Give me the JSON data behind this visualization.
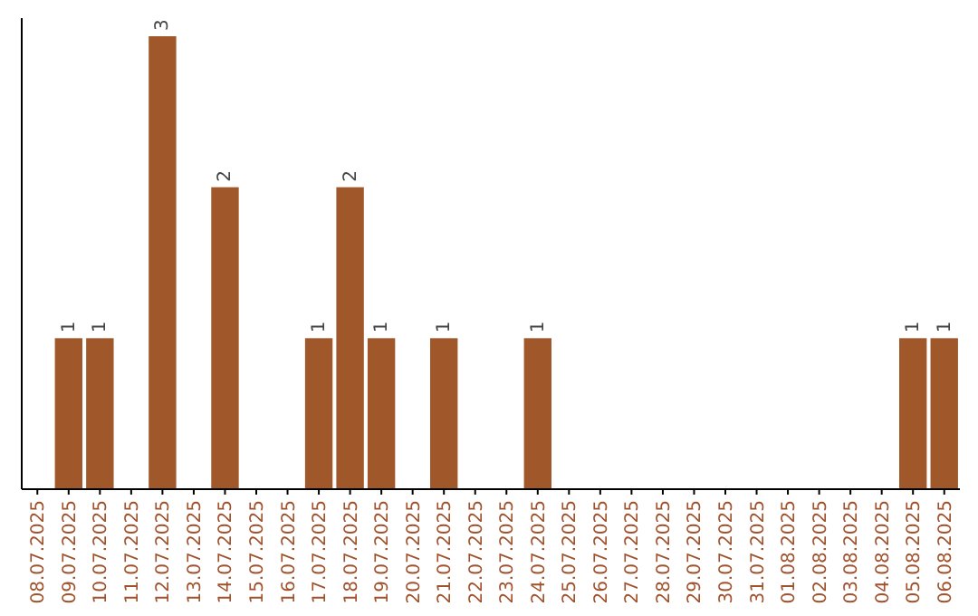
{
  "chart_data": {
    "type": "bar",
    "categories": [
      "08.07.2025",
      "09.07.2025",
      "10.07.2025",
      "11.07.2025",
      "12.07.2025",
      "13.07.2025",
      "14.07.2025",
      "15.07.2025",
      "16.07.2025",
      "17.07.2025",
      "18.07.2025",
      "19.07.2025",
      "20.07.2025",
      "21.07.2025",
      "22.07.2025",
      "23.07.2025",
      "24.07.2025",
      "25.07.2025",
      "26.07.2025",
      "27.07.2025",
      "28.07.2025",
      "29.07.2025",
      "30.07.2025",
      "31.07.2025",
      "01.08.2025",
      "02.08.2025",
      "03.08.2025",
      "04.08.2025",
      "05.08.2025",
      "06.08.2025"
    ],
    "values": [
      0,
      1,
      1,
      0,
      3,
      0,
      2,
      0,
      0,
      1,
      2,
      1,
      0,
      1,
      0,
      0,
      1,
      0,
      0,
      0,
      0,
      0,
      0,
      0,
      0,
      0,
      0,
      0,
      1,
      1
    ],
    "value_labels": [
      null,
      "1",
      "1",
      null,
      "3",
      null,
      "2",
      null,
      null,
      "1",
      "2",
      "1",
      null,
      "1",
      null,
      null,
      "1",
      null,
      null,
      null,
      null,
      null,
      null,
      null,
      null,
      null,
      null,
      null,
      "1",
      "1"
    ],
    "color": "#a0572a",
    "tick_labels": "x"
  }
}
